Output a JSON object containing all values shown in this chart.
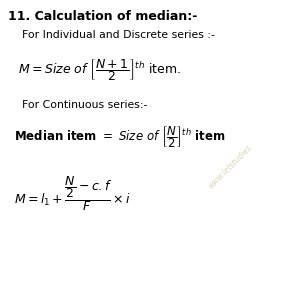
{
  "background_color": "#ffffff",
  "title": "11. Calculation of median:-",
  "line1": "For Individual and Discrete series :-",
  "line2": "For Continuous series:-",
  "watermark": "www.letstudies",
  "fig_width": 2.85,
  "fig_height": 2.82,
  "dpi": 100
}
